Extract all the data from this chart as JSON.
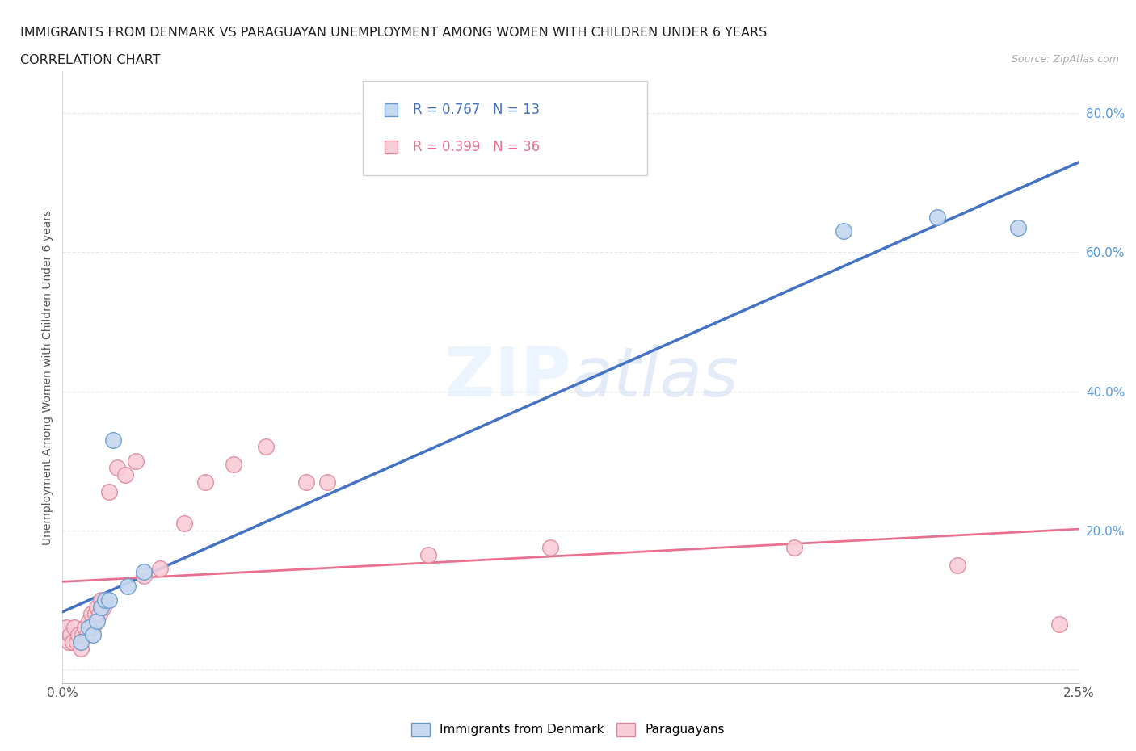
{
  "title_line1": "IMMIGRANTS FROM DENMARK VS PARAGUAYAN UNEMPLOYMENT AMONG WOMEN WITH CHILDREN UNDER 6 YEARS",
  "title_line2": "CORRELATION CHART",
  "source_text": "Source: ZipAtlas.com",
  "ylabel": "Unemployment Among Women with Children Under 6 years",
  "xlim": [
    0.0,
    0.025
  ],
  "ylim": [
    -0.02,
    0.86
  ],
  "ytick_vals": [
    0.0,
    0.2,
    0.4,
    0.6,
    0.8
  ],
  "ytick_labels": [
    "",
    "20.0%",
    "40.0%",
    "60.0%",
    "80.0%"
  ],
  "denmark_x": [
    0.00045,
    0.00065,
    0.00075,
    0.00085,
    0.00095,
    0.00105,
    0.00115,
    0.00125,
    0.0016,
    0.002,
    0.0192,
    0.0215,
    0.0235
  ],
  "denmark_y": [
    0.04,
    0.06,
    0.05,
    0.07,
    0.09,
    0.1,
    0.1,
    0.33,
    0.12,
    0.14,
    0.63,
    0.65,
    0.635
  ],
  "paraguay_x": [
    0.0001,
    0.00015,
    0.0002,
    0.00025,
    0.0003,
    0.00035,
    0.0004,
    0.00045,
    0.0005,
    0.00055,
    0.0006,
    0.00065,
    0.0007,
    0.00075,
    0.0008,
    0.00085,
    0.0009,
    0.00095,
    0.001,
    0.00115,
    0.00135,
    0.00155,
    0.0018,
    0.002,
    0.0024,
    0.003,
    0.0035,
    0.0042,
    0.005,
    0.006,
    0.0065,
    0.009,
    0.012,
    0.018,
    0.022,
    0.0245
  ],
  "paraguay_y": [
    0.06,
    0.04,
    0.05,
    0.04,
    0.06,
    0.04,
    0.05,
    0.03,
    0.05,
    0.06,
    0.05,
    0.07,
    0.08,
    0.06,
    0.08,
    0.09,
    0.08,
    0.1,
    0.09,
    0.255,
    0.29,
    0.28,
    0.3,
    0.135,
    0.145,
    0.21,
    0.27,
    0.295,
    0.32,
    0.27,
    0.27,
    0.165,
    0.175,
    0.175,
    0.15,
    0.065
  ],
  "denmark_color": "#c5d8f0",
  "denmark_line_color": "#4472c4",
  "denmark_edge_color": "#6699cc",
  "paraguay_color": "#f8ccd8",
  "paraguay_line_color": "#e87090",
  "paraguay_edge_color": "#dd8899",
  "R_denmark": 0.767,
  "N_denmark": 13,
  "R_paraguay": 0.399,
  "N_paraguay": 36,
  "background_color": "#ffffff",
  "grid_color": "#e8e8e8"
}
